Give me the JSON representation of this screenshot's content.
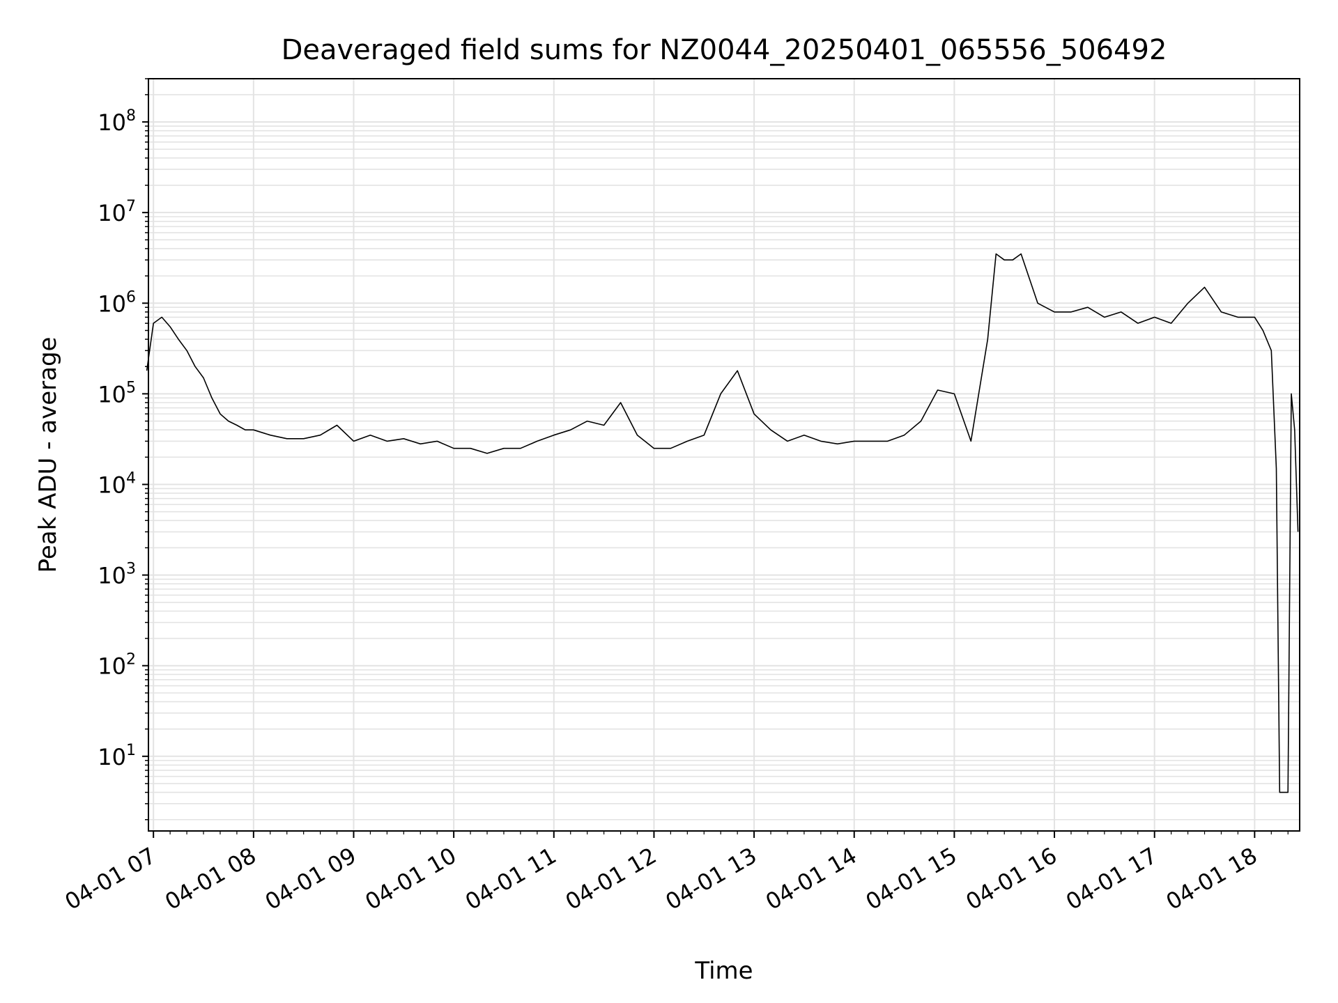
{
  "chart_data": {
    "type": "line",
    "title": "Deaveraged field sums for NZ0044_20250401_065556_506492",
    "xlabel": "Time",
    "ylabel": "Peak ADU - average",
    "yscale": "log",
    "ylim": [
      1.5,
      300000000.0
    ],
    "xlim": [
      "2025-04-01 06:57",
      "2025-04-01 18:27"
    ],
    "grid": true,
    "line_color": "#000000",
    "x_ticks": [
      "04-01 07",
      "04-01 08",
      "04-01 09",
      "04-01 10",
      "04-01 11",
      "04-01 12",
      "04-01 13",
      "04-01 14",
      "04-01 15",
      "04-01 16",
      "04-01 17",
      "04-01 18"
    ],
    "y_ticks": [
      {
        "value": 10,
        "base": "10",
        "exp": "1"
      },
      {
        "value": 100,
        "base": "10",
        "exp": "2"
      },
      {
        "value": 1000,
        "base": "10",
        "exp": "3"
      },
      {
        "value": 10000,
        "base": "10",
        "exp": "4"
      },
      {
        "value": 100000,
        "base": "10",
        "exp": "5"
      },
      {
        "value": 1000000,
        "base": "10",
        "exp": "6"
      },
      {
        "value": 10000000,
        "base": "10",
        "exp": "7"
      },
      {
        "value": 100000000,
        "base": "10",
        "exp": "8"
      }
    ],
    "series": [
      {
        "color": "#000000",
        "x": [
          "2025-04-01 06:56",
          "2025-04-01 07:00",
          "2025-04-01 07:05",
          "2025-04-01 07:10",
          "2025-04-01 07:15",
          "2025-04-01 07:20",
          "2025-04-01 07:25",
          "2025-04-01 07:30",
          "2025-04-01 07:35",
          "2025-04-01 07:40",
          "2025-04-01 07:45",
          "2025-04-01 07:50",
          "2025-04-01 07:55",
          "2025-04-01 08:00",
          "2025-04-01 08:10",
          "2025-04-01 08:20",
          "2025-04-01 08:30",
          "2025-04-01 08:40",
          "2025-04-01 08:50",
          "2025-04-01 09:00",
          "2025-04-01 09:10",
          "2025-04-01 09:20",
          "2025-04-01 09:30",
          "2025-04-01 09:40",
          "2025-04-01 09:50",
          "2025-04-01 10:00",
          "2025-04-01 10:10",
          "2025-04-01 10:20",
          "2025-04-01 10:30",
          "2025-04-01 10:40",
          "2025-04-01 10:50",
          "2025-04-01 11:00",
          "2025-04-01 11:10",
          "2025-04-01 11:20",
          "2025-04-01 11:30",
          "2025-04-01 11:40",
          "2025-04-01 11:50",
          "2025-04-01 12:00",
          "2025-04-01 12:10",
          "2025-04-01 12:20",
          "2025-04-01 12:30",
          "2025-04-01 12:40",
          "2025-04-01 12:50",
          "2025-04-01 13:00",
          "2025-04-01 13:10",
          "2025-04-01 13:20",
          "2025-04-01 13:30",
          "2025-04-01 13:40",
          "2025-04-01 13:50",
          "2025-04-01 14:00",
          "2025-04-01 14:10",
          "2025-04-01 14:20",
          "2025-04-01 14:30",
          "2025-04-01 14:40",
          "2025-04-01 14:50",
          "2025-04-01 15:00",
          "2025-04-01 15:10",
          "2025-04-01 15:20",
          "2025-04-01 15:25",
          "2025-04-01 15:30",
          "2025-04-01 15:35",
          "2025-04-01 15:40",
          "2025-04-01 15:50",
          "2025-04-01 16:00",
          "2025-04-01 16:10",
          "2025-04-01 16:20",
          "2025-04-01 16:30",
          "2025-04-01 16:40",
          "2025-04-01 16:50",
          "2025-04-01 17:00",
          "2025-04-01 17:10",
          "2025-04-01 17:20",
          "2025-04-01 17:30",
          "2025-04-01 17:40",
          "2025-04-01 17:50",
          "2025-04-01 18:00",
          "2025-04-01 18:05",
          "2025-04-01 18:10",
          "2025-04-01 18:13",
          "2025-04-01 18:15",
          "2025-04-01 18:20",
          "2025-04-01 18:22",
          "2025-04-01 18:24",
          "2025-04-01 18:26"
        ],
        "y": [
          180000,
          600000,
          700000,
          550000,
          400000,
          300000,
          200000,
          150000,
          90000,
          60000,
          50000,
          45000,
          40000,
          40000,
          35000,
          32000,
          32000,
          35000,
          45000,
          30000,
          35000,
          30000,
          32000,
          28000,
          30000,
          25000,
          25000,
          22000,
          25000,
          25000,
          30000,
          35000,
          40000,
          50000,
          45000,
          80000,
          35000,
          25000,
          25000,
          30000,
          35000,
          100000,
          180000,
          60000,
          40000,
          30000,
          35000,
          30000,
          28000,
          30000,
          30000,
          30000,
          35000,
          50000,
          110000,
          100000,
          30000,
          400000,
          3500000,
          3000000,
          3000000,
          3500000,
          1000000,
          800000,
          800000,
          900000,
          700000,
          800000,
          600000,
          700000,
          600000,
          1000000,
          1500000,
          800000,
          700000,
          700000,
          500000,
          300000,
          15000,
          4,
          4,
          100000,
          40000,
          3000
        ]
      }
    ]
  }
}
